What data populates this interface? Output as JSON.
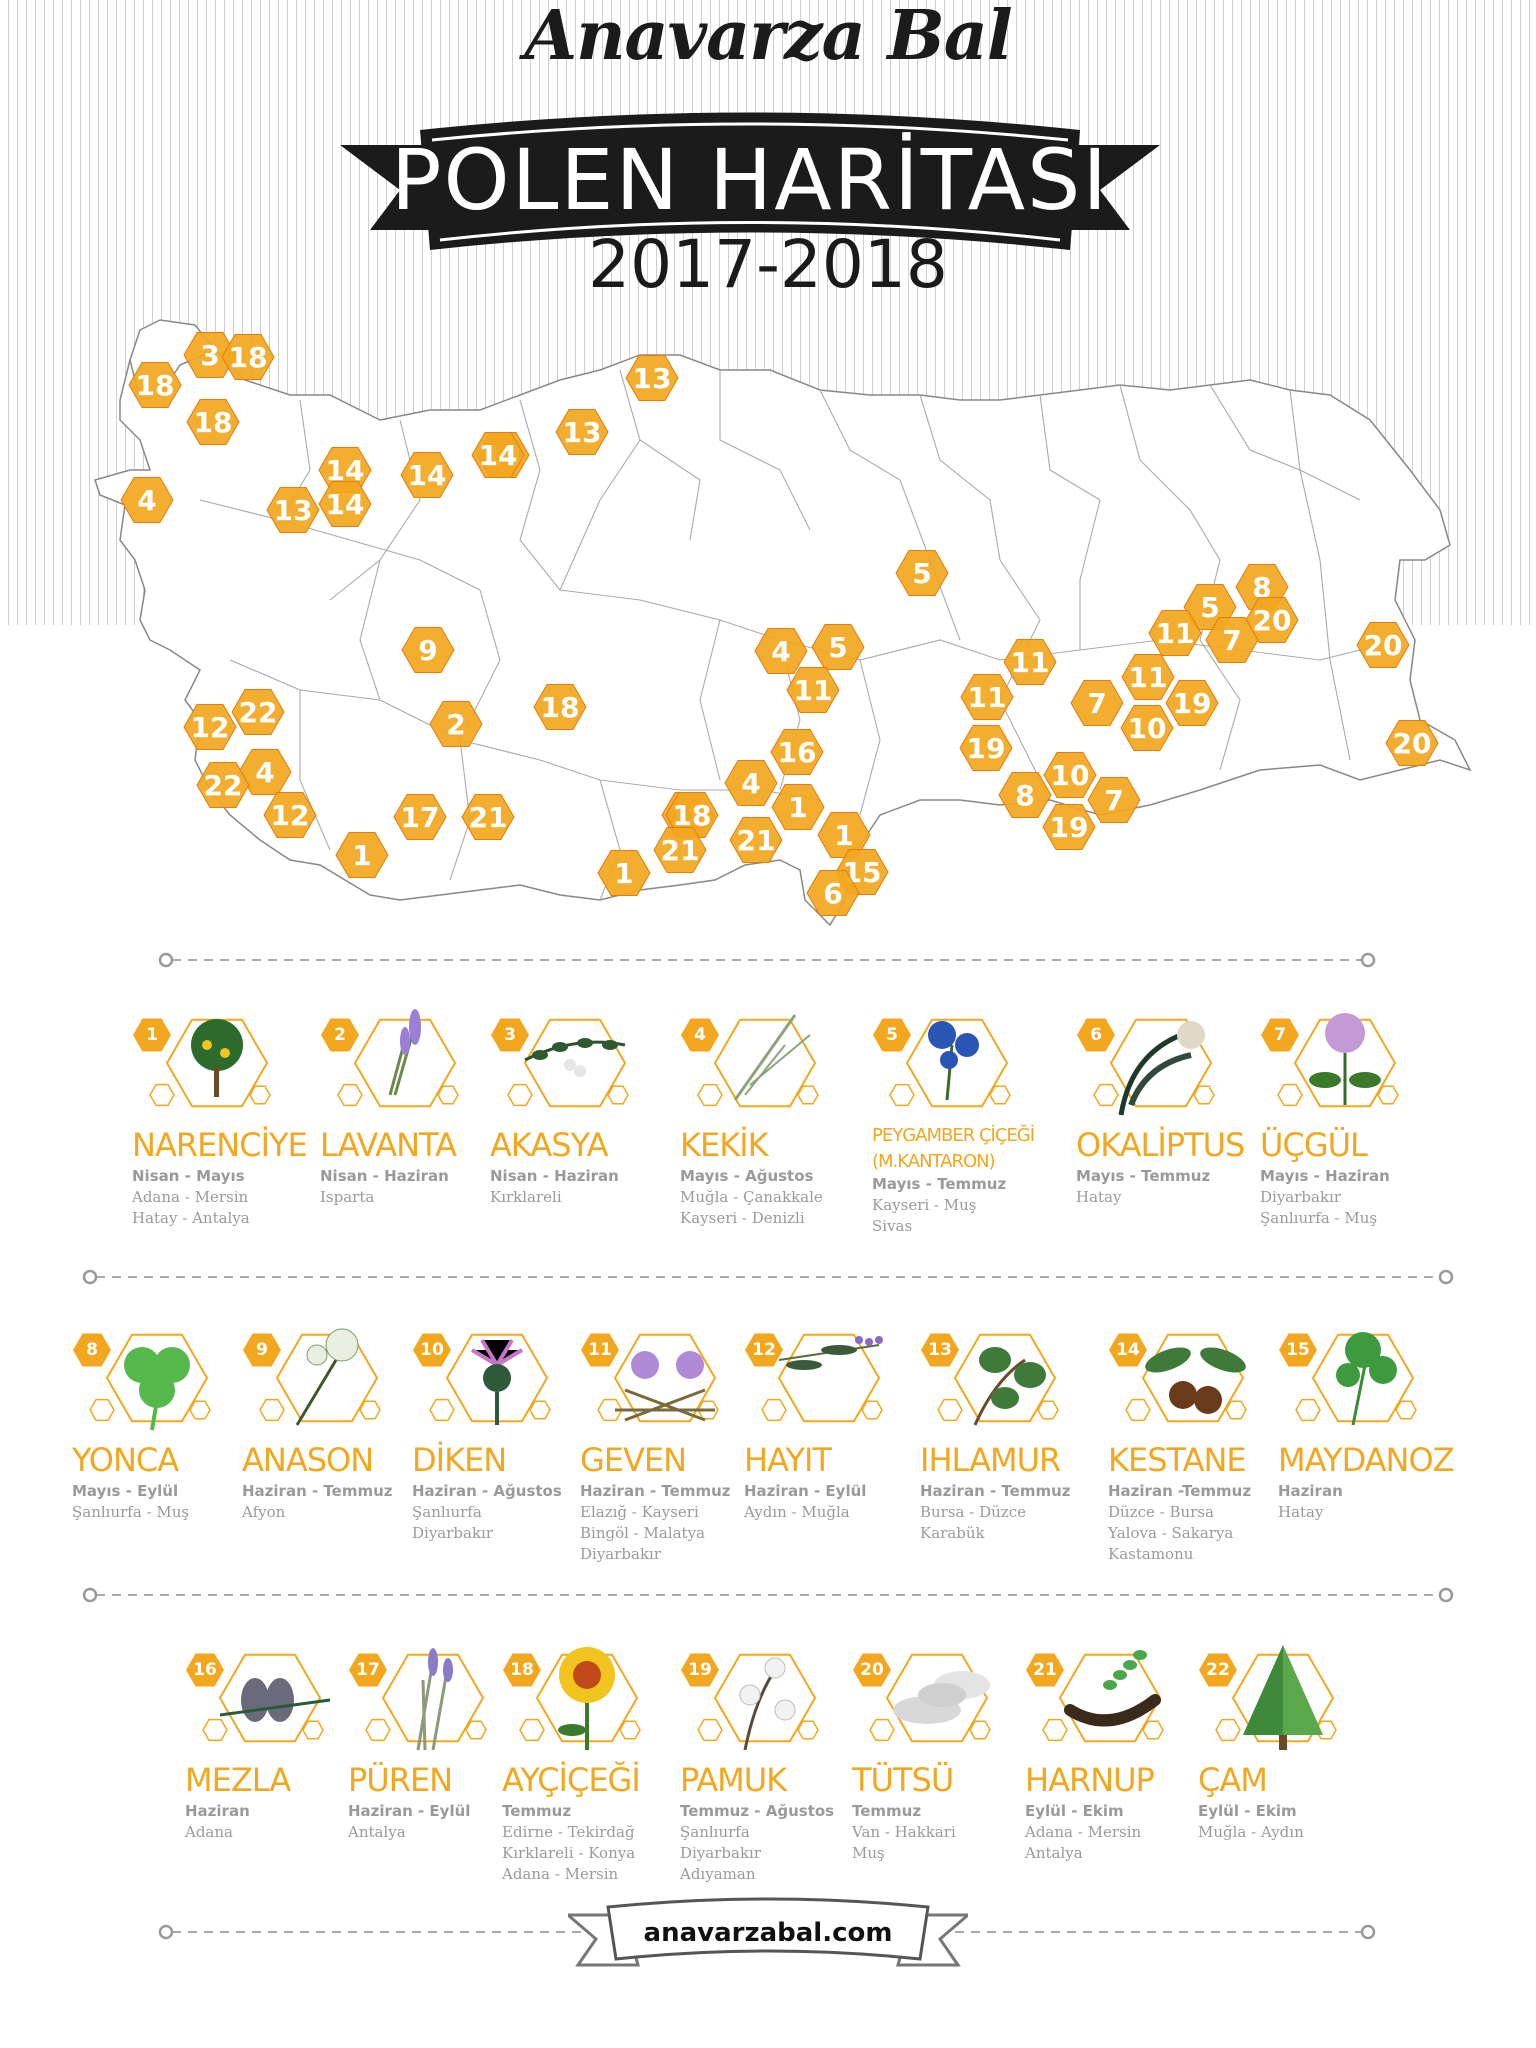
{
  "header": {
    "brand": "Anavarza Bal",
    "title": "POLEN HARİTASI",
    "years": "2017-2018",
    "website": "anavarzabal.com"
  },
  "colors": {
    "accent": "#f2a71f",
    "hex_dark": "#e07e12",
    "banner": "#1b1b1b",
    "text_muted": "#9a9a9a"
  },
  "map_markers": [
    "18",
    "3",
    "18",
    "18",
    "14",
    "13",
    "14",
    "14",
    "13",
    "14",
    "4",
    "13",
    "14",
    "5",
    "8",
    "5",
    "20",
    "7",
    "11",
    "20",
    "9",
    "4",
    "5",
    "11",
    "11",
    "11",
    "7",
    "19",
    "12",
    "22",
    "4",
    "2",
    "18",
    "11",
    "10",
    "19",
    "20",
    "16",
    "22",
    "4",
    "18",
    "8",
    "10",
    "7",
    "12",
    "17",
    "21",
    "1",
    "19",
    "18",
    "1",
    "1",
    "21",
    "21",
    "15",
    "1",
    "6"
  ],
  "plants": [
    {
      "num": "1",
      "name": "NARENCİYE",
      "months": "Nisan - Mayıs",
      "places": [
        "Adana - Mersin",
        "Hatay - Antalya"
      ],
      "icon": "citrus-tree-icon"
    },
    {
      "num": "2",
      "name": "LAVANTA",
      "months": "Nisan - Haziran",
      "places": [
        "Isparta"
      ],
      "icon": "lavender-icon"
    },
    {
      "num": "3",
      "name": "AKASYA",
      "months": "Nisan - Haziran",
      "places": [
        "Kırklareli"
      ],
      "icon": "acacia-icon"
    },
    {
      "num": "4",
      "name": "KEKİK",
      "months": "Mayıs - Ağustos",
      "places": [
        "Muğla - Çanakkale",
        "Kayseri - Denizli"
      ],
      "icon": "thyme-icon"
    },
    {
      "num": "5",
      "name": "PEYGAMBER ÇİÇEĞİ",
      "name2": "(M.KANTARON)",
      "months": "Mayıs - Temmuz",
      "places": [
        "Kayseri - Muş",
        "Sivas"
      ],
      "icon": "cornflower-icon"
    },
    {
      "num": "6",
      "name": "OKALİPTUS",
      "months": "Mayıs - Temmuz",
      "places": [
        "Hatay"
      ],
      "icon": "eucalyptus-icon"
    },
    {
      "num": "7",
      "name": "ÜÇGÜL",
      "months": "Mayıs - Haziran",
      "places": [
        "Diyarbakır",
        "Şanlıurfa - Muş"
      ],
      "icon": "red-clover-icon"
    },
    {
      "num": "8",
      "name": "YONCA",
      "months": "Mayıs - Eylül",
      "places": [
        "Şanlıurfa - Muş"
      ],
      "icon": "clover-icon"
    },
    {
      "num": "9",
      "name": "ANASON",
      "months": "Haziran - Temmuz",
      "places": [
        "Afyon"
      ],
      "icon": "anise-icon"
    },
    {
      "num": "10",
      "name": "DİKEN",
      "months": "Haziran - Ağustos",
      "places": [
        "Şanlıurfa",
        "Diyarbakır"
      ],
      "icon": "thistle-icon"
    },
    {
      "num": "11",
      "name": "GEVEN",
      "months": "Haziran - Temmuz",
      "places": [
        "Elazığ - Kayseri",
        "Bingöl - Malatya",
        "Diyarbakır"
      ],
      "icon": "astragalus-icon"
    },
    {
      "num": "12",
      "name": "HAYIT",
      "months": "Haziran - Eylül",
      "places": [
        "Aydın - Muğla"
      ],
      "icon": "chaste-tree-icon"
    },
    {
      "num": "13",
      "name": "IHLAMUR",
      "months": "Haziran - Temmuz",
      "places": [
        "Bursa - Düzce",
        "Karabük"
      ],
      "icon": "linden-icon"
    },
    {
      "num": "14",
      "name": "KESTANE",
      "months": "Haziran -Temmuz",
      "places": [
        "Düzce - Bursa",
        "Yalova - Sakarya",
        "Kastamonu"
      ],
      "icon": "chestnut-icon"
    },
    {
      "num": "15",
      "name": "MAYDANOZ",
      "months": "Haziran",
      "places": [
        "Hatay"
      ],
      "icon": "parsley-icon"
    },
    {
      "num": "16",
      "name": "MEZLA",
      "months": "Haziran",
      "places": [
        "Adana"
      ],
      "icon": "pine-scale-icon"
    },
    {
      "num": "17",
      "name": "PÜREN",
      "months": "Haziran - Eylül",
      "places": [
        "Antalya"
      ],
      "icon": "heather-icon"
    },
    {
      "num": "18",
      "name": "AYÇİÇEĞİ",
      "months": "Temmuz",
      "places": [
        "Edirne - Tekirdağ",
        "Kırklareli - Konya",
        "Adana - Mersin"
      ],
      "icon": "sunflower-icon"
    },
    {
      "num": "19",
      "name": "PAMUK",
      "months": "Temmuz - Ağustos",
      "places": [
        "Şanlıurfa",
        "Diyarbakır",
        "Adıyaman"
      ],
      "icon": "cotton-icon"
    },
    {
      "num": "20",
      "name": "TÜTSÜ",
      "months": "Temmuz",
      "places": [
        "Van - Hakkari",
        "Muş"
      ],
      "icon": "smoke-icon"
    },
    {
      "num": "21",
      "name": "HARNUP",
      "months": "Eylül - Ekim",
      "places": [
        "Adana - Mersin",
        "Antalya"
      ],
      "icon": "carob-icon"
    },
    {
      "num": "22",
      "name": "ÇAM",
      "months": "Eylül - Ekim",
      "places": [
        "Muğla - Aydın"
      ],
      "icon": "pine-tree-icon"
    }
  ]
}
